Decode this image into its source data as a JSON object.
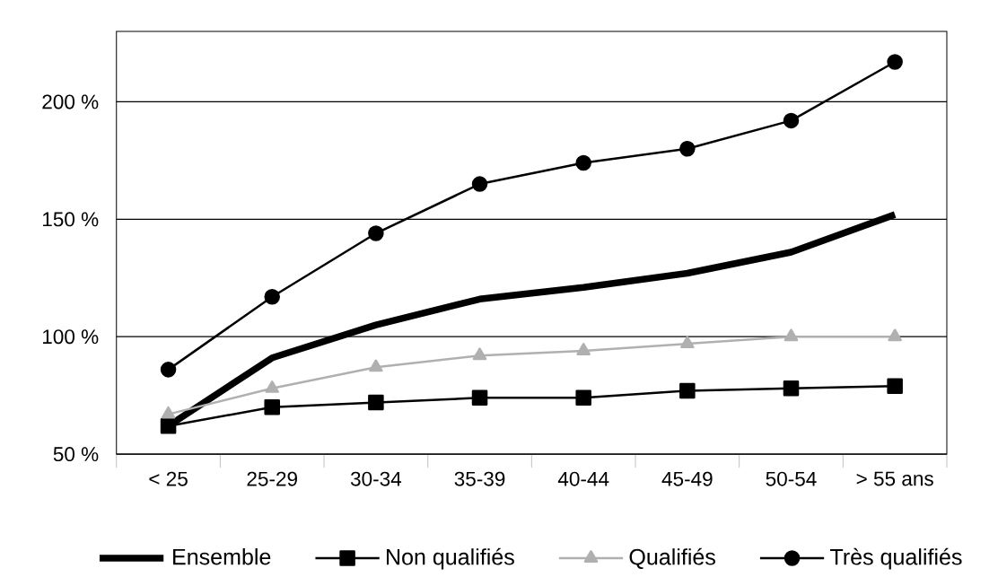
{
  "chart_data": {
    "type": "line",
    "categories": [
      "< 25",
      "25-29",
      "30-34",
      "35-39",
      "40-44",
      "45-49",
      "50-54",
      "> 55 ans"
    ],
    "series": [
      {
        "name": "Ensemble",
        "color": "#000000",
        "marker": "none",
        "values": [
          62,
          91,
          105,
          116,
          121,
          127,
          136,
          152
        ]
      },
      {
        "name": "Non qualifiés",
        "color": "#000000",
        "marker": "square",
        "values": [
          62,
          70,
          72,
          74,
          74,
          77,
          78,
          79
        ]
      },
      {
        "name": "Qualifiés",
        "color": "#b0b0b0",
        "marker": "triangle",
        "values": [
          67,
          78,
          87,
          92,
          94,
          97,
          100,
          100
        ]
      },
      {
        "name": "Très qualifiés",
        "color": "#000000",
        "marker": "circle",
        "values": [
          86,
          117,
          144,
          165,
          174,
          180,
          192,
          217
        ]
      }
    ],
    "ylim": [
      50,
      230
    ],
    "yticks": [
      {
        "value": 50,
        "label": "50 %"
      },
      {
        "value": 100,
        "label": "100 %"
      },
      {
        "value": 150,
        "label": "150 %"
      },
      {
        "value": 200,
        "label": "200 %"
      }
    ],
    "grid": "y",
    "legend": "bottom"
  }
}
